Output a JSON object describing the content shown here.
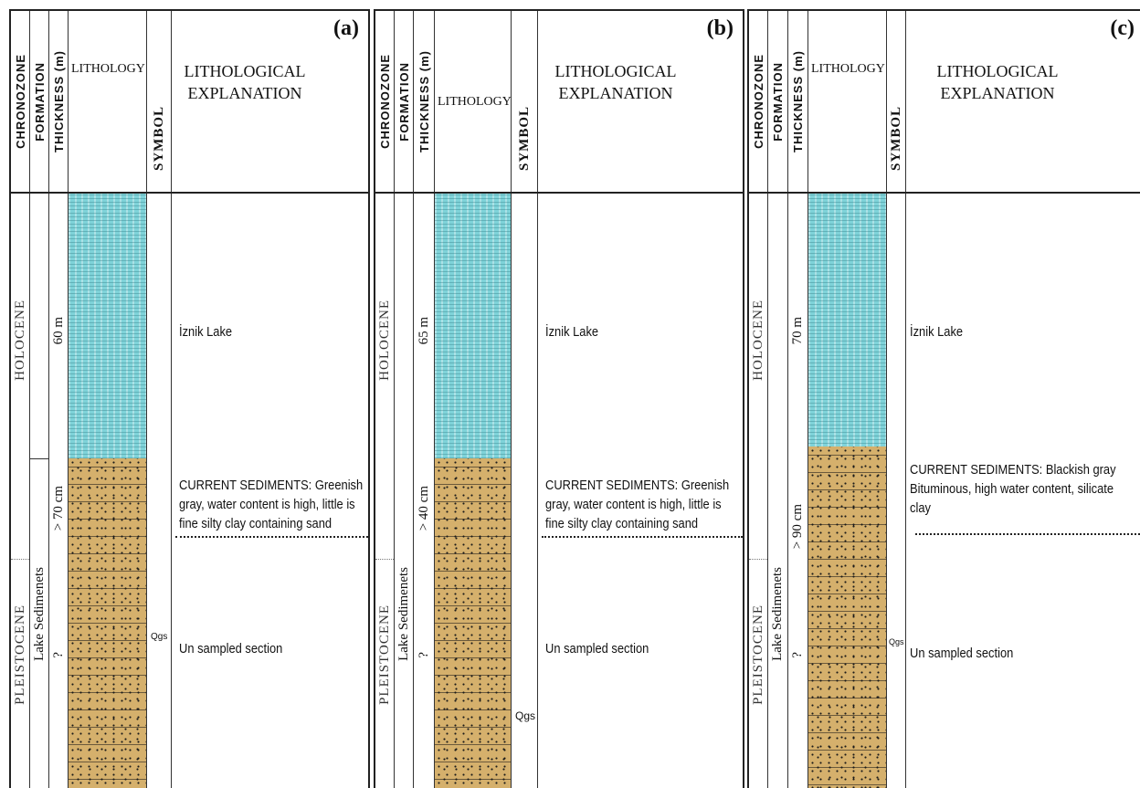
{
  "headers": {
    "chronozone": "CHRONOZONE",
    "formation": "FORMATION",
    "thickness": "THICKNESS (m)",
    "lithology": "LITHOLOGY",
    "symbol": "SYMBOL",
    "explanation_line1": "LITHOLOGICAL",
    "explanation_line2": "EXPLANATION"
  },
  "panels": [
    {
      "letter": "(a)",
      "holocene": "HOLOCENE",
      "pleistocene": "PLEISTOCENE",
      "formation_name": "Lake Sedimenets",
      "lake_thickness": "60 m",
      "sediment_thickness": "> 70 cm",
      "unknown_thickness": "?",
      "symbol_code": "Qgs",
      "lake_text": "İznik Lake",
      "sediment_text": "CURRENT SEDIMENTS: Greenish gray, water content is high, little is fine  silty clay containing sand",
      "unsampled_text": "Un sampled section"
    },
    {
      "letter": "(b)",
      "holocene": "HOLOCENE",
      "pleistocene": "PLEISTOCENE",
      "formation_name": "Lake Sedimenets",
      "lake_thickness": "65 m",
      "sediment_thickness": "> 40 cm",
      "unknown_thickness": "?",
      "symbol_code": "Qgs",
      "lake_text": "İznik Lake",
      "sediment_text": "CURRENT SEDIMENTS: Greenish gray, water content is high, little is fine silty clay containing sand",
      "unsampled_text": "Un sampled section"
    },
    {
      "letter": "(c)",
      "holocene": "HOLOCENE",
      "pleistocene": "PLEISTOCENE",
      "formation_name": "Lake Sedimenets",
      "lake_thickness": "70 m",
      "sediment_thickness": "> 90 cm",
      "unknown_thickness": "?",
      "symbol_code": "Qgs",
      "lake_text": "İznik Lake",
      "sediment_text": "CURRENT SEDIMENTS: Blackish gray Bituminous, high water content, silicate clay",
      "unsampled_text": "Un sampled section"
    }
  ],
  "colors": {
    "water": "#7fd3d9",
    "sediment": "#d5b06c"
  }
}
